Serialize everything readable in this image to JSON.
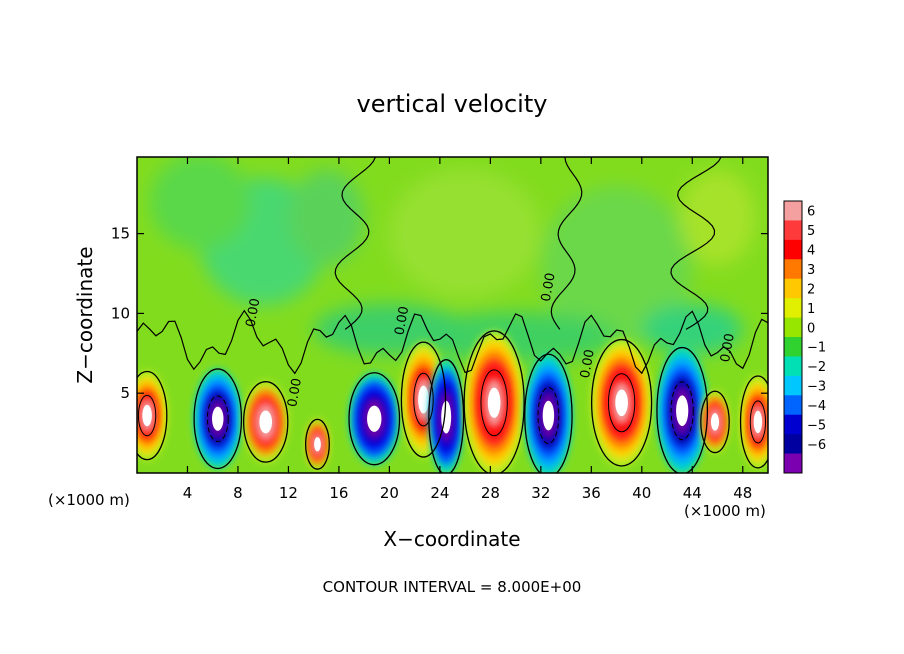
{
  "chart_data": {
    "type": "heatmap",
    "title": "vertical velocity",
    "xlabel": "X−coordinate",
    "ylabel": "Z−coordinate",
    "x_unit_left": "(×1000 m)",
    "x_unit_right": "(×1000 m)",
    "footer": "CONTOUR INTERVAL = 8.000E+00",
    "xlim": [
      0,
      50
    ],
    "ylim": [
      0,
      19.8
    ],
    "x_ticks": [
      4,
      8,
      12,
      16,
      20,
      24,
      28,
      32,
      36,
      40,
      44,
      48
    ],
    "y_ticks": [
      5,
      10,
      15
    ],
    "colorbar": {
      "levels": [
        "6",
        "5",
        "4",
        "3",
        "2",
        "1",
        "0",
        "−1",
        "−2",
        "−3",
        "−4",
        "−5",
        "−6"
      ],
      "colors": [
        "#f4a0a0",
        "#ff3a3a",
        "#ff0000",
        "#ff7800",
        "#ffc800",
        "#e0f000",
        "#96e600",
        "#30d230",
        "#00e0b4",
        "#00c8ff",
        "#0064ff",
        "#0000d0",
        "#0000a0",
        "#7a00b0"
      ]
    },
    "contour_labels": [
      {
        "text": "0.00",
        "x": 9.5,
        "z": 10.0
      },
      {
        "text": "0.00",
        "x": 12.8,
        "z": 5.0
      },
      {
        "text": "0.00",
        "x": 21.3,
        "z": 9.5
      },
      {
        "text": "0.00",
        "x": 32.9,
        "z": 11.6
      },
      {
        "text": "0.00",
        "x": 36.0,
        "z": 6.8
      },
      {
        "text": "0.00",
        "x": 47.1,
        "z": 7.8
      }
    ],
    "cells": [
      {
        "x": 0.8,
        "z": 3.6,
        "w": 2.5,
        "h": 4.6,
        "w_val": 8,
        "type": "up"
      },
      {
        "x": 6.4,
        "z": 3.4,
        "w": 3.0,
        "h": 5.2,
        "w_val": -8,
        "type": "down"
      },
      {
        "x": 10.2,
        "z": 3.2,
        "w": 2.8,
        "h": 4.2,
        "w_val": 6,
        "type": "up"
      },
      {
        "x": 14.3,
        "z": 1.8,
        "w": 1.5,
        "h": 2.6,
        "w_val": 4,
        "type": "up"
      },
      {
        "x": 18.8,
        "z": 3.4,
        "w": 3.2,
        "h": 4.8,
        "w_val": -5,
        "type": "down"
      },
      {
        "x": 22.7,
        "z": 4.6,
        "w": 2.8,
        "h": 6.0,
        "w_val": 8,
        "type": "up"
      },
      {
        "x": 24.5,
        "z": 3.5,
        "w": 2.2,
        "h": 6.0,
        "w_val": -5,
        "type": "down"
      },
      {
        "x": 28.3,
        "z": 4.4,
        "w": 3.8,
        "h": 7.5,
        "w_val": 14,
        "type": "up"
      },
      {
        "x": 32.6,
        "z": 3.6,
        "w": 3.0,
        "h": 6.4,
        "w_val": -10,
        "type": "down"
      },
      {
        "x": 38.4,
        "z": 4.4,
        "w": 3.8,
        "h": 6.6,
        "w_val": 12,
        "type": "up"
      },
      {
        "x": 43.2,
        "z": 3.9,
        "w": 3.2,
        "h": 6.6,
        "w_val": -9,
        "type": "down"
      },
      {
        "x": 45.8,
        "z": 3.2,
        "w": 1.8,
        "h": 3.2,
        "w_val": 4,
        "type": "up"
      },
      {
        "x": 49.2,
        "z": 3.2,
        "w": 2.2,
        "h": 4.8,
        "w_val": 8,
        "type": "up"
      }
    ]
  }
}
